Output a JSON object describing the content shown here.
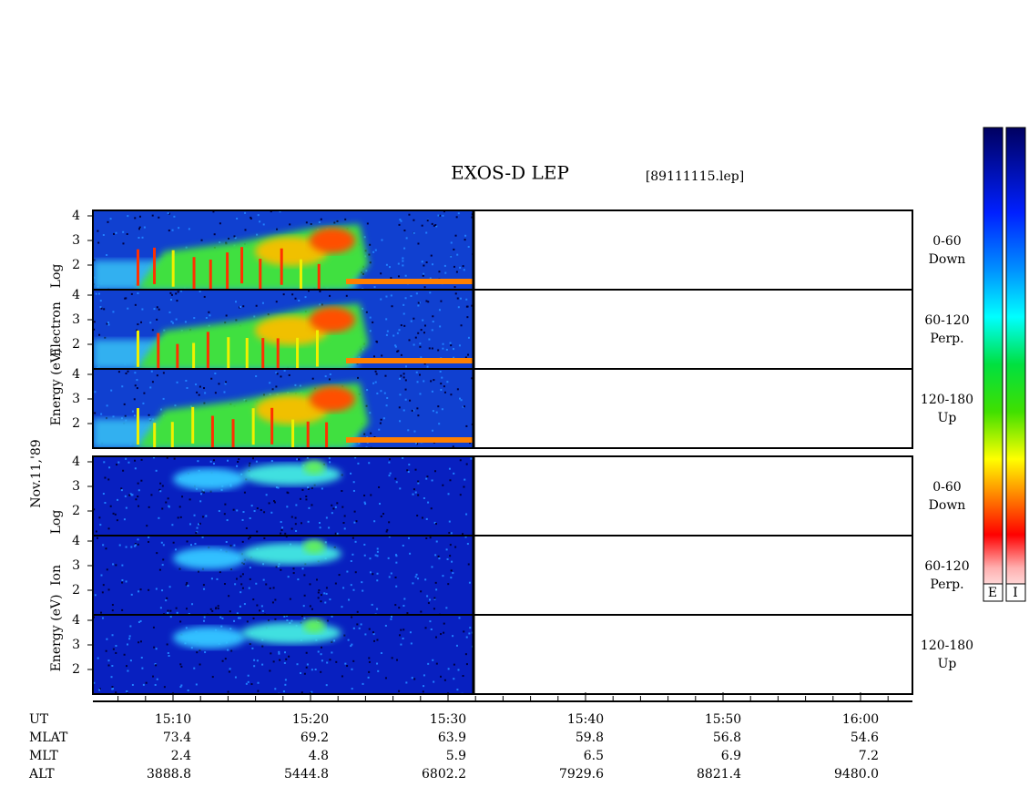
{
  "header": {
    "title": "EXOS-D LEP",
    "file": "[89111115.lep]",
    "date": "Nov.11,'89"
  },
  "electron": {
    "axis_label": [
      "Log",
      "Electron",
      "Energy (eV)"
    ],
    "panels": [
      {
        "range": "0-60",
        "direction": "Down"
      },
      {
        "range": "60-120",
        "direction": "Perp."
      },
      {
        "range": "120-180",
        "direction": "Up"
      }
    ]
  },
  "ion": {
    "axis_label": [
      "Log",
      "Ion",
      "Energy (eV)"
    ],
    "panels": [
      {
        "range": "0-60",
        "direction": "Down"
      },
      {
        "range": "60-120",
        "direction": "Perp."
      },
      {
        "range": "120-180",
        "direction": "Up"
      }
    ]
  },
  "energy_ticks": [
    "2",
    "3",
    "4"
  ],
  "time_axis": {
    "label": "UT",
    "ticks": [
      "15:10",
      "15:20",
      "15:30",
      "15:40",
      "15:50",
      "16:00"
    ]
  },
  "ephemeris": [
    {
      "label": "MLAT",
      "values": [
        "73.4",
        "69.2",
        "63.9",
        "59.8",
        "56.8",
        "54.6"
      ]
    },
    {
      "label": "MLT",
      "values": [
        "2.4",
        "4.8",
        "5.9",
        "6.5",
        "6.9",
        "7.2"
      ]
    },
    {
      "label": "ALT",
      "values": [
        "3888.8",
        "5444.8",
        "6802.2",
        "7929.6",
        "8821.4",
        "9480.0"
      ]
    }
  ],
  "colorbars": [
    "E",
    "I"
  ]
}
